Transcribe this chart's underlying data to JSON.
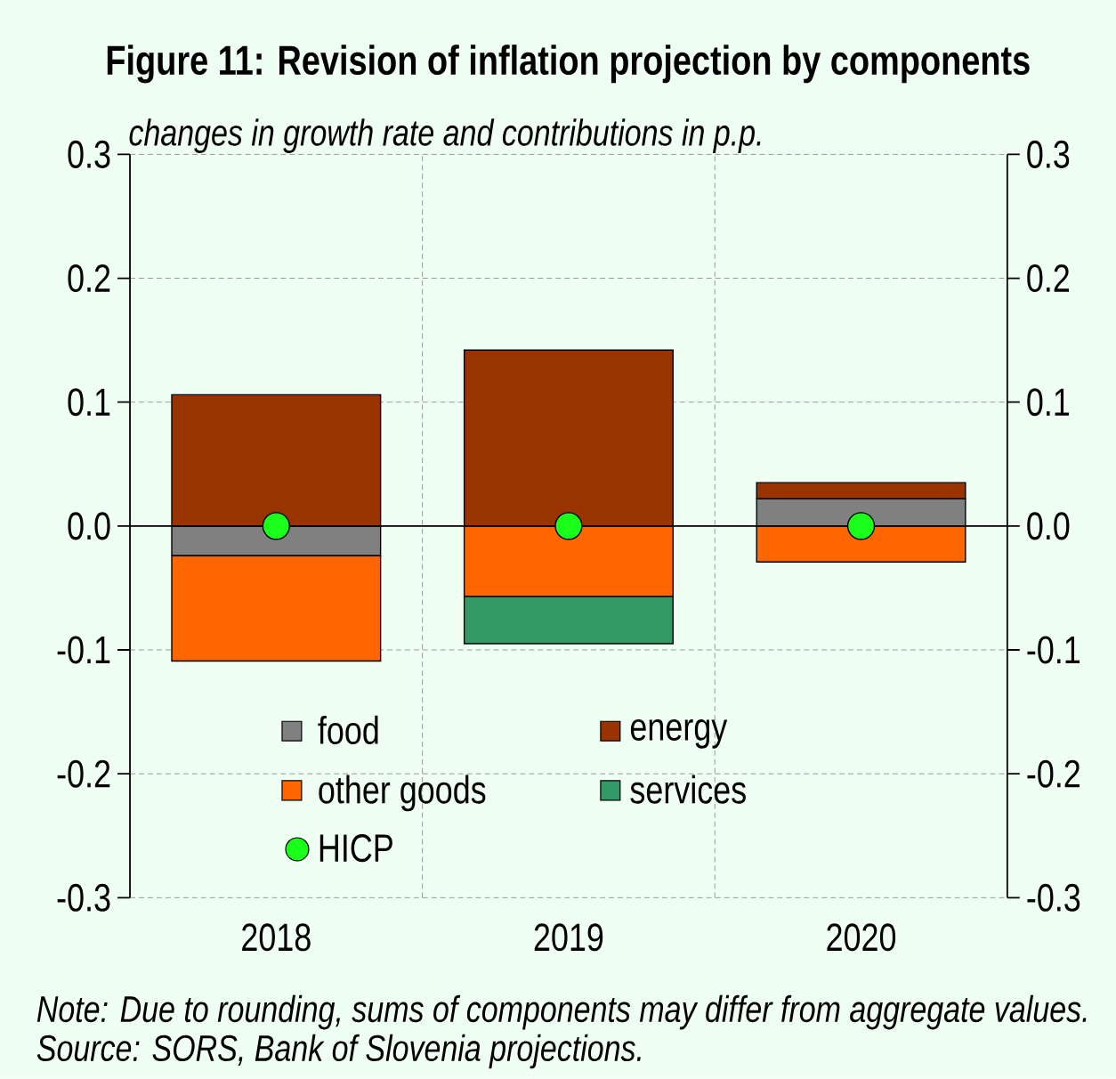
{
  "chart_data": {
    "type": "bar",
    "stacked": true,
    "title": "Figure 11: Revision of inflation projection by components",
    "subtitle": "changes in growth rate and contributions in p.p.",
    "categories": [
      "2018",
      "2019",
      "2020"
    ],
    "series": [
      {
        "name": "food",
        "color": "#808080",
        "values": [
          -0.024,
          0,
          0.022
        ]
      },
      {
        "name": "energy",
        "color": "#993300",
        "values": [
          0.106,
          0.142,
          0.013
        ]
      },
      {
        "name": "other goods",
        "color": "#ff6600",
        "values": [
          -0.085,
          -0.057,
          -0.029
        ]
      },
      {
        "name": "services",
        "color": "#339966",
        "values": [
          0,
          -0.038,
          0
        ]
      },
      {
        "name": "HICP",
        "type": "scatter",
        "color": "#19ff19",
        "values": [
          0,
          0,
          0
        ]
      }
    ],
    "marker": "circle",
    "ylim": [
      -0.3,
      0.3
    ],
    "yticks": [
      -0.3,
      -0.2,
      -0.1,
      {
        "value": 0,
        "label": "0.0"
      },
      0.1,
      0.2,
      0.3
    ],
    "y2lim": [
      -0.3,
      0.3
    ],
    "y2ticks": [
      -0.3,
      -0.2,
      -0.1,
      {
        "value": 0,
        "label": "0.0"
      },
      0.1,
      0.2,
      0.3
    ],
    "grid": true,
    "legend": "bottom",
    "annotations": [
      "Note: Due to rounding, sums of components may differ from aggregate values.",
      "Source: SORS, Bank of Slovenia projections."
    ]
  }
}
